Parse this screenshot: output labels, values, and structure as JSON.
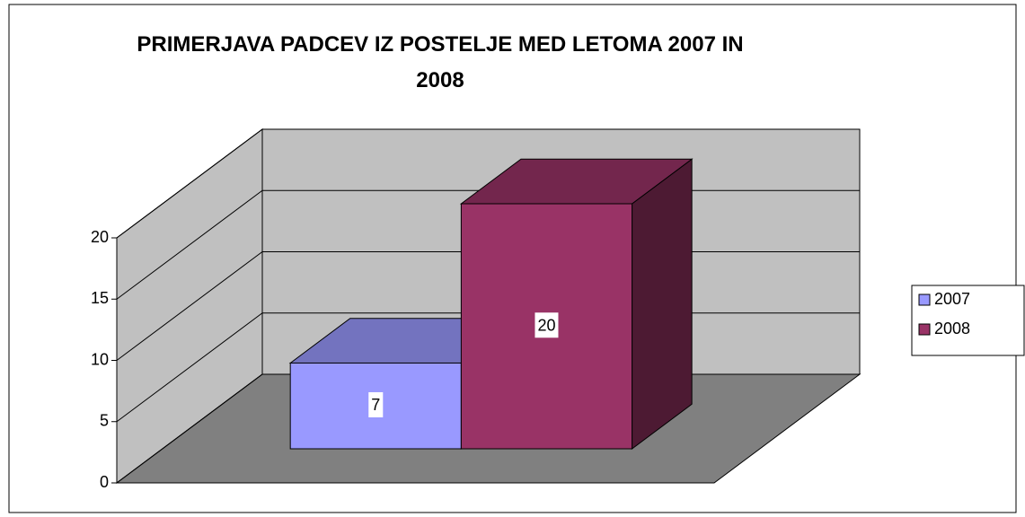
{
  "chart_data": {
    "type": "bar3d",
    "title": "PRIMERJAVA PADCEV IZ POSTELJE MED LETOMA 2007 IN 2008",
    "categories": [
      null
    ],
    "series": [
      {
        "name": "2007",
        "color": "#9999ff",
        "values": [
          7
        ]
      },
      {
        "name": "2008",
        "color": "#993366",
        "values": [
          20
        ]
      }
    ],
    "ylim": [
      0,
      20
    ],
    "yticks": [
      0,
      5,
      10,
      15,
      20
    ],
    "grid": true,
    "legend": "right",
    "data_labels": true
  }
}
